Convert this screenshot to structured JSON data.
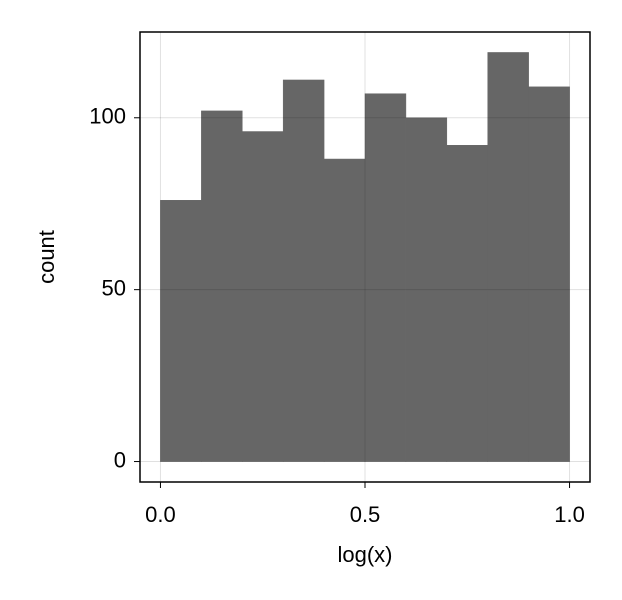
{
  "chart_data": {
    "type": "histogram",
    "xlabel": "log(x)",
    "ylabel": "count",
    "bins": [
      0,
      0.1,
      0.2,
      0.3,
      0.4,
      0.5,
      0.6,
      0.7,
      0.8,
      0.9,
      1.0
    ],
    "values": [
      76,
      102,
      96,
      111,
      88,
      107,
      100,
      92,
      119,
      109
    ],
    "color": "#666666",
    "xlim": [
      -0.05,
      1.05
    ],
    "xticks": [
      {
        "value": 0,
        "label": "0.0"
      },
      0.5,
      {
        "value": 1,
        "label": "1.0"
      }
    ],
    "ylim": [
      -5.95,
      124.95
    ],
    "yticks": [
      0,
      50,
      100
    ],
    "grid": true
  }
}
